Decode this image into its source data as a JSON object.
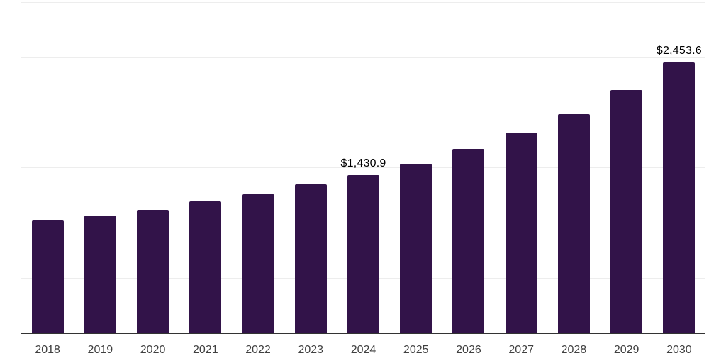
{
  "chart_data": {
    "type": "bar",
    "title": "",
    "xlabel": "",
    "ylabel": "",
    "categories": [
      "2018",
      "2019",
      "2020",
      "2021",
      "2022",
      "2023",
      "2024",
      "2025",
      "2026",
      "2027",
      "2028",
      "2029",
      "2030"
    ],
    "values": [
      1020,
      1066,
      1122,
      1194,
      1260,
      1348,
      1430.9,
      1540,
      1670,
      1820,
      1985,
      2205,
      2453.6
    ],
    "point_labels": [
      "",
      "",
      "",
      "",
      "",
      "",
      "$1,430.9",
      "",
      "",
      "",
      "",
      "",
      "$2,453.6"
    ],
    "ylim": [
      0,
      3000
    ],
    "gridline_step": 500,
    "grid": "horizontal-only",
    "legend_position": "none",
    "y_tick_labels_visible": false,
    "colors": {
      "bar": "#321349",
      "gridline": "#ededed",
      "axis_line": "#333333",
      "x_tick_text": "#404040",
      "value_label_text": "#000000",
      "background": "#ffffff"
    }
  }
}
